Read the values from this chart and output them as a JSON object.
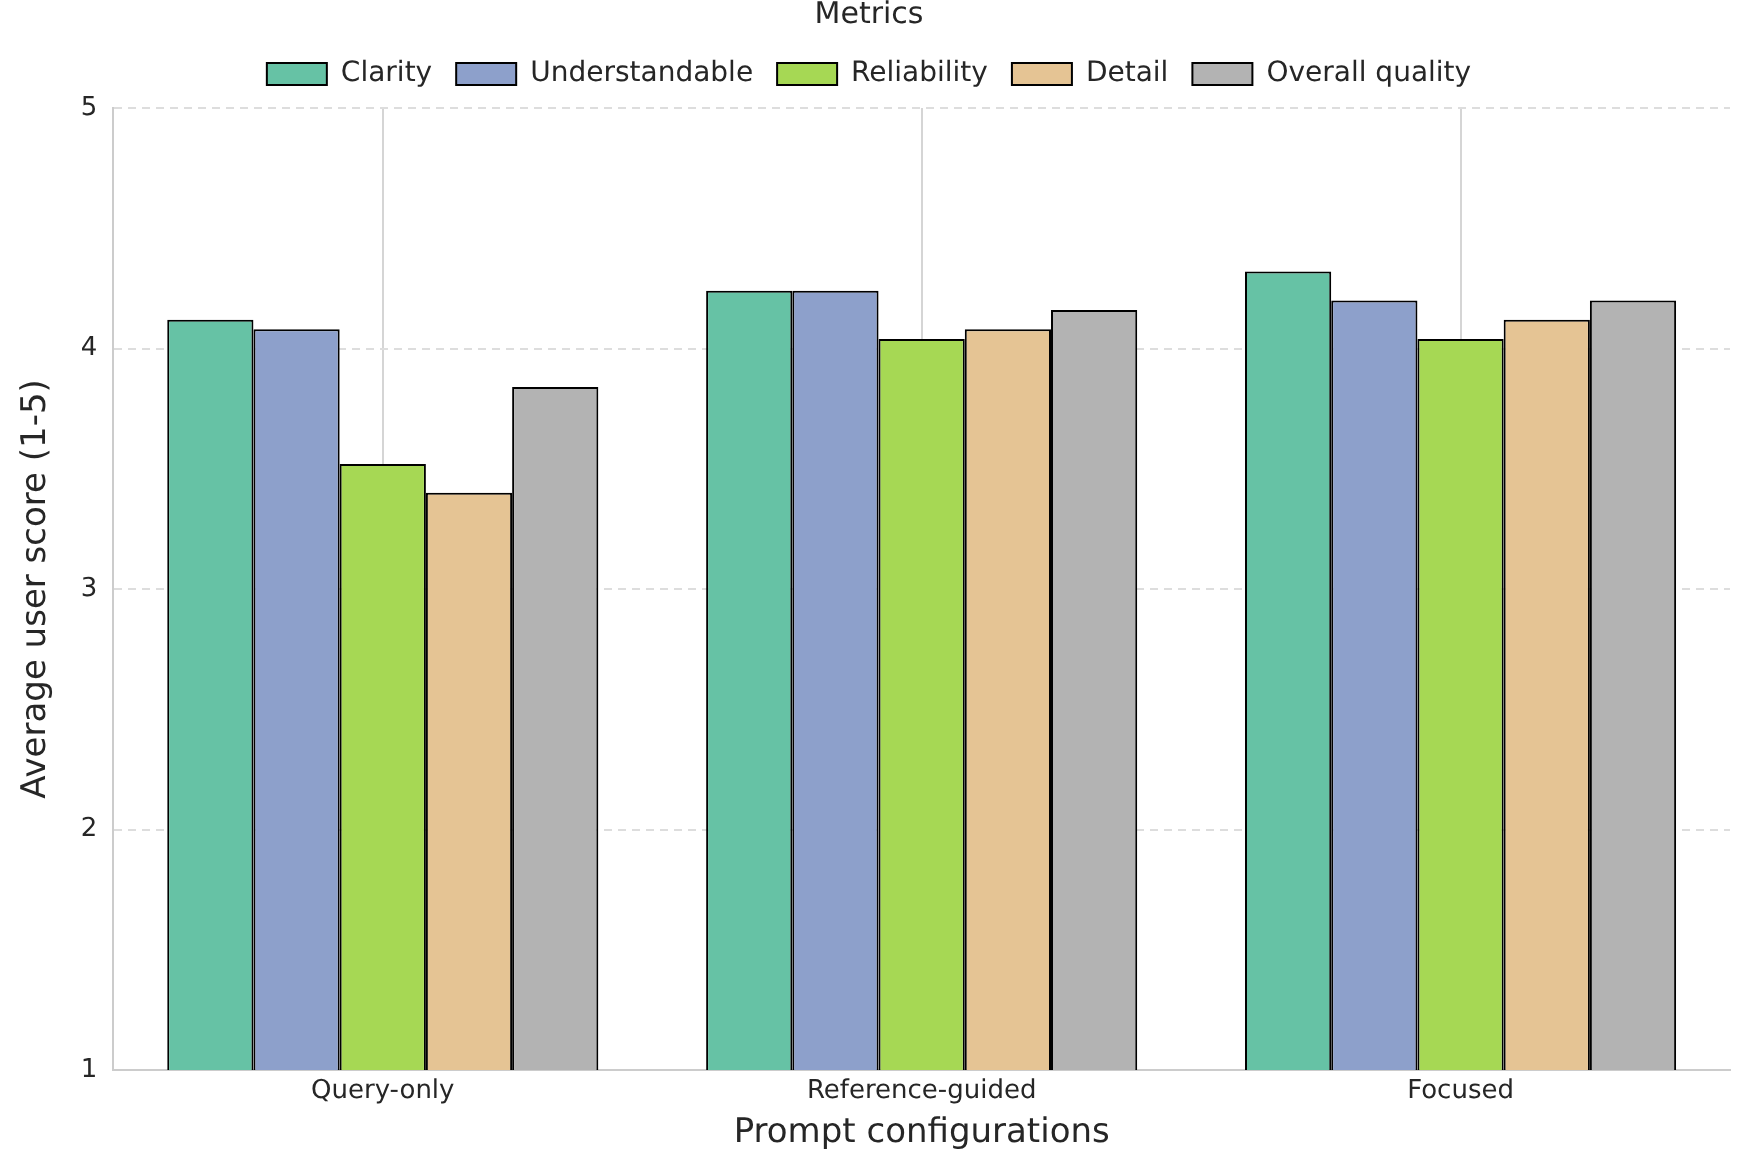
{
  "chart_data": {
    "type": "bar",
    "xlabel": "Prompt configurations",
    "ylabel": "Average user score (1-5)",
    "legend_title": "Metrics",
    "categories": [
      "Query-only",
      "Reference-guided",
      "Focused"
    ],
    "series": [
      {
        "name": "Clarity",
        "color": "#66c2a5",
        "values": [
          4.12,
          4.24,
          4.32
        ]
      },
      {
        "name": "Understandable",
        "color": "#8da0cb",
        "values": [
          4.08,
          4.24,
          4.2
        ]
      },
      {
        "name": "Reliability",
        "color": "#a6d854",
        "values": [
          3.52,
          4.04,
          4.04
        ]
      },
      {
        "name": "Detail",
        "color": "#e5c494",
        "values": [
          3.4,
          4.08,
          4.12
        ]
      },
      {
        "name": "Overall quality",
        "color": "#b3b3b3",
        "values": [
          3.84,
          4.16,
          4.2
        ]
      }
    ],
    "ylim": [
      1,
      5
    ],
    "yticks": [
      1,
      2,
      3,
      4,
      5
    ],
    "grid": true,
    "legend": "top"
  }
}
